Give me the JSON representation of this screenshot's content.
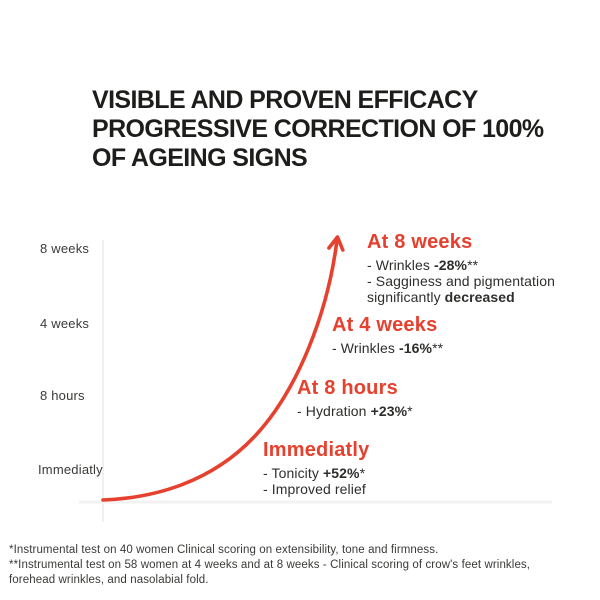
{
  "title": {
    "lines": [
      "VISIBLE AND PROVEN EFFICACY",
      "PROGRESSIVE CORRECTION OF 100%",
      "OF AGEING SIGNS"
    ]
  },
  "colors": {
    "accent_red": "#e6402e",
    "text_black": "#1d1d1b",
    "axis_gray": "#ededed"
  },
  "chart_data": {
    "type": "line",
    "title": "VISIBLE AND PROVEN EFFICACY PROGRESSIVE CORRECTION OF 100% OF AGEING SIGNS",
    "style": "exponential rising red curve ending in an arrowhead",
    "grid": "off",
    "legend": "none",
    "y_axis_labels_top_to_bottom": [
      "8 weeks",
      "4 weeks",
      "8 hours",
      "Immediatly"
    ],
    "x_categories": [
      "Immediatly",
      "8 hours",
      "4 weeks",
      "8 weeks"
    ],
    "points": [
      {
        "time": "Immediatly",
        "results": [
          "Tonicity +52%*",
          "Improved relief"
        ]
      },
      {
        "time": "8 hours",
        "results": [
          "Hydration +23%*"
        ]
      },
      {
        "time": "4 weeks",
        "results": [
          "Wrinkles -16%**"
        ]
      },
      {
        "time": "8 weeks",
        "results": [
          "Wrinkles -28%**",
          "Sagginess and pigmentation significantly decreased"
        ]
      }
    ]
  },
  "axis": {
    "labels": [
      "8 weeks",
      "4 weeks",
      "8 hours",
      "Immediatly"
    ]
  },
  "annotations": [
    {
      "heading": "At 8 weeks",
      "lines": [
        [
          {
            "t": "- Wrinkles ",
            "b": false
          },
          {
            "t": "-28%",
            "b": true
          },
          {
            "t": "**",
            "b": false
          }
        ],
        [
          {
            "t": "- Sagginess and pigmentation",
            "b": false
          }
        ],
        [
          {
            "t": "significantly ",
            "b": false
          },
          {
            "t": "decreased",
            "b": true
          }
        ]
      ]
    },
    {
      "heading": "At 4 weeks",
      "lines": [
        [
          {
            "t": "- Wrinkles ",
            "b": false
          },
          {
            "t": "-16%",
            "b": true
          },
          {
            "t": "**",
            "b": false
          }
        ]
      ]
    },
    {
      "heading": "At 8 hours",
      "lines": [
        [
          {
            "t": "- Hydration ",
            "b": false
          },
          {
            "t": "+23%",
            "b": true
          },
          {
            "t": "*",
            "b": false
          }
        ]
      ]
    },
    {
      "heading": "Immediatly",
      "lines": [
        [
          {
            "t": "- Tonicity ",
            "b": false
          },
          {
            "t": "+52%",
            "b": true
          },
          {
            "t": "*",
            "b": false
          }
        ],
        [
          {
            "t": "- Improved relief",
            "b": false
          }
        ]
      ]
    }
  ],
  "footnotes": [
    "*Instrumental test on 40 women Clinical scoring on extensibility, tone and firmness.",
    "**Instrumental test on 58 women at 4 weeks and at 8 weeks - Clinical scoring of crow's feet wrinkles,",
    "forehead wrinkles, and nasolabial fold."
  ]
}
